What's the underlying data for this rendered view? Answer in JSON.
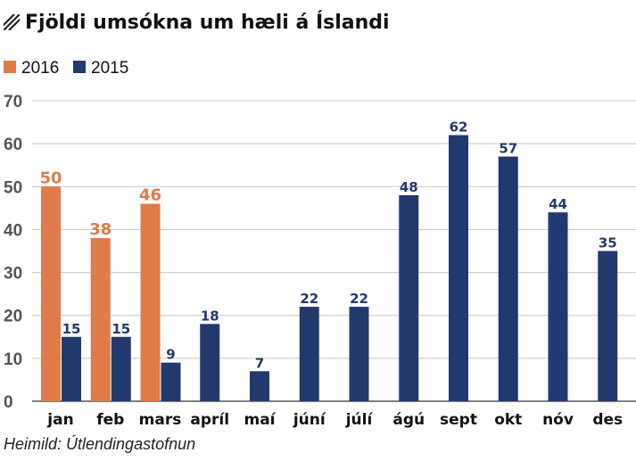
{
  "chart_data": {
    "type": "bar",
    "title": "Fjöldi umsókna um hæli á Íslandi",
    "categories": [
      "jan",
      "feb",
      "mars",
      "apríl",
      "maí",
      "júní",
      "júlí",
      "ágú",
      "sept",
      "okt",
      "nóv",
      "des"
    ],
    "series": [
      {
        "name": "2016",
        "color": "#e07b4a",
        "values": [
          50,
          38,
          46,
          null,
          null,
          null,
          null,
          null,
          null,
          null,
          null,
          null
        ]
      },
      {
        "name": "2015",
        "color": "#22396d",
        "values": [
          15,
          15,
          9,
          18,
          7,
          22,
          22,
          48,
          62,
          57,
          44,
          35
        ]
      }
    ],
    "ylim": [
      0,
      70
    ],
    "yticks": [
      0,
      10,
      20,
      30,
      40,
      50,
      60,
      70
    ],
    "grid": true,
    "legend": "top-left",
    "source": "Heimild: Útlendingastofnun"
  }
}
